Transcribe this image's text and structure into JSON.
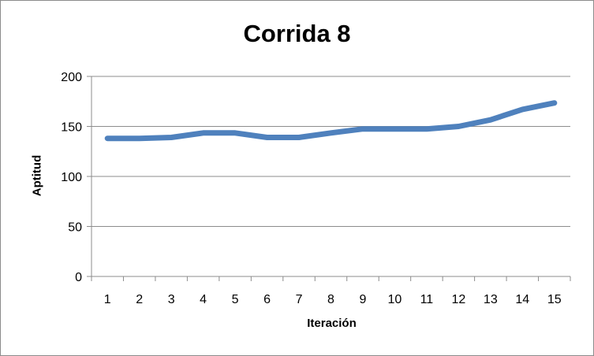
{
  "chart_data": {
    "type": "line",
    "title": "Corrida 8",
    "xlabel": "Iteración",
    "ylabel": "Aptitud",
    "categories": [
      "1",
      "2",
      "3",
      "4",
      "5",
      "6",
      "7",
      "8",
      "9",
      "10",
      "11",
      "12",
      "13",
      "14",
      "15"
    ],
    "series": [
      {
        "values": [
          138,
          138,
          139,
          143.5,
          143.5,
          139,
          139,
          143.5,
          147.5,
          147.5,
          147.5,
          150,
          156.5,
          167,
          173.5
        ],
        "color": "#4f81bd"
      }
    ],
    "ylim": [
      0,
      200
    ],
    "yticks": [
      "0",
      "50",
      "100",
      "150",
      "200"
    ],
    "grid": "horizontal",
    "legend": "none"
  }
}
